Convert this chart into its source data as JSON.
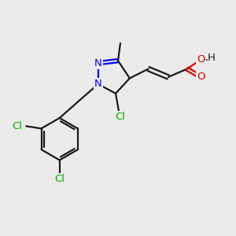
{
  "bg_color": "#ebebeb",
  "bond_color": "#1a1a1a",
  "N_color": "#0000ee",
  "O_color": "#dd0000",
  "Cl_color": "#00aa00",
  "line_width": 1.6,
  "font_size": 9.5,
  "figsize": [
    3.0,
    3.0
  ],
  "dpi": 100,
  "xlim": [
    0,
    10
  ],
  "ylim": [
    0,
    10
  ]
}
